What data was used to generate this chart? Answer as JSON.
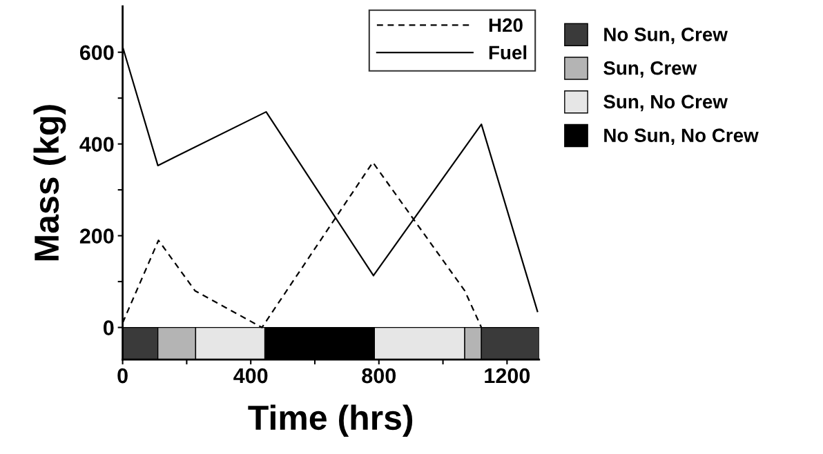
{
  "chart_data": {
    "type": "line",
    "xlabel": "Time (hrs)",
    "ylabel": "Mass (kg)",
    "xlim": [
      0,
      1300
    ],
    "xticks": [
      0,
      {
        "value": 200,
        "label": null
      },
      400,
      {
        "value": 600,
        "label": null
      },
      800,
      {
        "value": 1000,
        "label": null
      },
      1200
    ],
    "ylim": [
      -70,
      700
    ],
    "yticks": [
      0,
      {
        "value": 100,
        "label": null
      },
      200,
      {
        "value": 300,
        "label": null
      },
      400,
      {
        "value": 500,
        "label": null
      },
      600
    ],
    "grid": false,
    "legend": "top right",
    "marker": "none",
    "series": [
      {
        "name": "H20",
        "color": "#000000",
        "line_style": "dashed",
        "x": [
          0,
          112,
          226,
          435,
          781,
          1068,
          1120
        ],
        "values": [
          10,
          190,
          80,
          0,
          360,
          80,
          0
        ]
      },
      {
        "name": "Fuel",
        "color": "#000000",
        "line_style": "solid",
        "x": [
          0,
          110,
          448,
          783,
          1120,
          1295
        ],
        "values": [
          612,
          353,
          470,
          113,
          443,
          35
        ]
      }
    ],
    "bands": [
      {
        "axis": "x",
        "from": 0,
        "to": 110,
        "label": "No Sun, Crew",
        "color": "#3a3a3a"
      },
      {
        "axis": "x",
        "from": 110,
        "to": 228,
        "label": "Sun, Crew",
        "color": "#b4b4b4"
      },
      {
        "axis": "x",
        "from": 228,
        "to": 444,
        "label": "Sun, No Crew",
        "color": "#e6e6e6"
      },
      {
        "axis": "x",
        "from": 444,
        "to": 786,
        "label": "No Sun, No Crew",
        "color": "#000000"
      },
      {
        "axis": "x",
        "from": 786,
        "to": 1068,
        "label": null,
        "color": "#e6e6e6"
      },
      {
        "axis": "x",
        "from": 1068,
        "to": 1120,
        "label": null,
        "color": "#b4b4b4"
      },
      {
        "axis": "x",
        "from": 1120,
        "to": 1300,
        "label": null,
        "color": "#3a3a3a"
      }
    ]
  }
}
